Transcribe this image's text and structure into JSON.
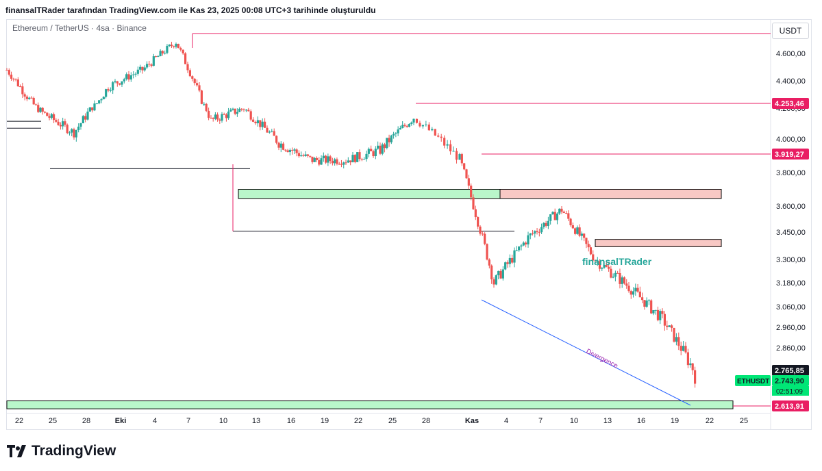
{
  "header": {
    "text": "finansalTRader tarafından TradingView.com ile Kas 23, 2025 00:08 UTC+3 tarihinde oluşturuldu"
  },
  "symbol": {
    "text": "Ethereum / TetherUS · 4sa · Binance"
  },
  "currency": "USDT",
  "brand": {
    "name": "TradingView"
  },
  "watermark": "finansalTRader",
  "divergence_label": "Divergence",
  "colors": {
    "up": "#26a69a",
    "down": "#ef5350",
    "level": "#e91e63",
    "support": "#b9f6ca",
    "resistance": "#f8c8c4",
    "line": "#2962ff",
    "text": "#131722",
    "axis": "#5d606b"
  },
  "chart_data": {
    "type": "candlestick",
    "instrument": "ETHUSDT",
    "timeframe": "4sa",
    "exchange": "Binance",
    "price_axis_ticks": [
      4600,
      4400,
      4200,
      4000,
      3800,
      3600,
      3450,
      3300,
      3180,
      3060,
      2960,
      2860
    ],
    "price_axis_tick_labels": [
      "4.600,00",
      "4.400,00",
      "4.200,00",
      "4.000,00",
      "3.800,00",
      "3.600,00",
      "3.450,00",
      "3.300,00",
      "3.180,00",
      "3.060,00",
      "2.960,00",
      "2.860,00"
    ],
    "time_axis_labels": [
      "22",
      "25",
      "28",
      "Eki",
      "4",
      "7",
      "10",
      "13",
      "16",
      "19",
      "22",
      "25",
      "28",
      "Kas",
      "4",
      "7",
      "10",
      "13",
      "16",
      "19",
      "22",
      "25"
    ],
    "price_labels": [
      {
        "label": "4.253,46",
        "value": 4253.46,
        "color": "#e91e63"
      },
      {
        "label": "3.919,27",
        "value": 3919.27,
        "color": "#e91e63"
      },
      {
        "label": "2.765,85",
        "value": 2765.85,
        "color": "#131722"
      },
      {
        "label": "2.743,90",
        "value": 2743.9,
        "color": "#00e676",
        "countdown": "02:51:09",
        "tag": "ETHUSDT"
      },
      {
        "label": "2.613,91",
        "value": 2613.91,
        "color": "#e91e63"
      }
    ],
    "resistance_levels": [
      4755,
      4253.46,
      3919.27
    ],
    "support_lines": [
      4115,
      4070,
      3825,
      3455
    ],
    "zones": [
      {
        "kind": "support",
        "from": 3645,
        "to": 3700
      },
      {
        "kind": "resistance",
        "from": 3645,
        "to": 3700
      },
      {
        "kind": "resistance",
        "from": 3370,
        "to": 3410
      },
      {
        "kind": "support",
        "from": 2595,
        "to": 2640
      }
    ],
    "price_path": [
      [
        "22",
        4480
      ],
      [
        "25",
        4180
      ],
      [
        "28",
        4040
      ],
      [
        "Eki",
        4360
      ],
      [
        "4",
        4480
      ],
      [
        "7",
        4690
      ],
      [
        "10",
        4120
      ],
      [
        "13",
        4200
      ],
      [
        "16",
        3980
      ],
      [
        "19",
        3880
      ],
      [
        "22",
        3880
      ],
      [
        "25",
        3940
      ],
      [
        "28",
        4140
      ],
      [
        "Kas",
        3890
      ],
      [
        "4",
        3180
      ],
      [
        "7",
        3420
      ],
      [
        "10",
        3580
      ],
      [
        "13",
        3300
      ],
      [
        "16",
        3160
      ],
      [
        "19",
        3000
      ],
      [
        "22",
        2740
      ]
    ],
    "last_price": 2743.9
  }
}
